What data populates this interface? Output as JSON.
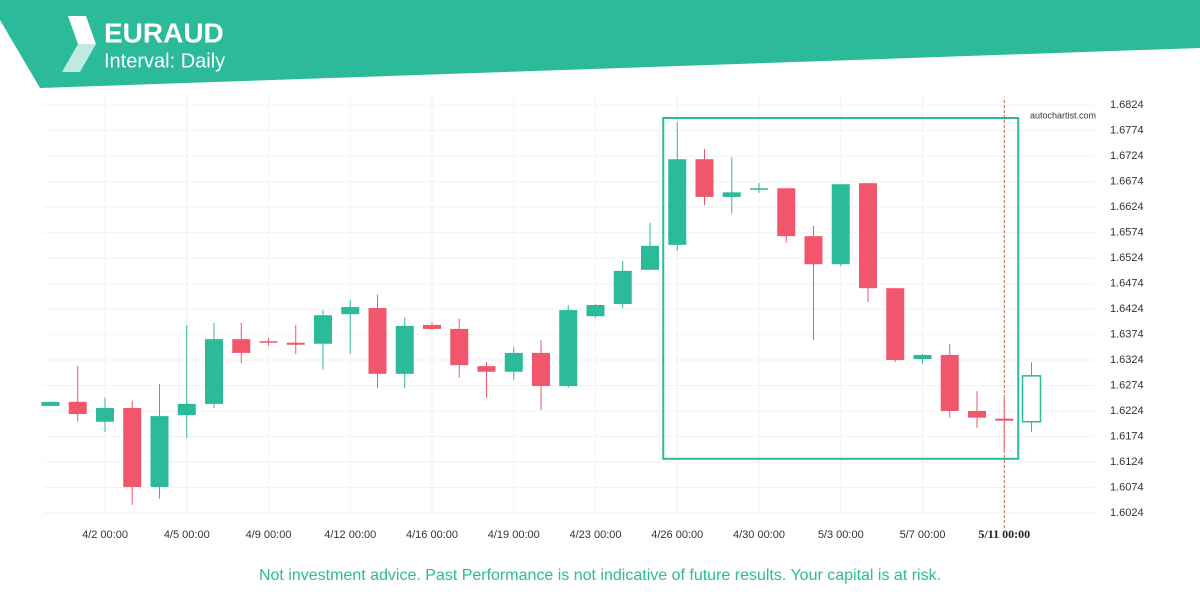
{
  "chart_data": {
    "type": "candlestick",
    "title": "EURAUD",
    "subtitle": "Interval: Daily",
    "source": "autochartist.com",
    "footer": "Not investment advice. Past Performance is not indicative of future results. Your capital is at risk.",
    "categories": [
      null,
      null,
      "4/2 00:00",
      null,
      null,
      "4/5 00:00",
      null,
      null,
      "4/9 00:00",
      null,
      null,
      "4/12 00:00",
      null,
      null,
      "4/16 00:00",
      null,
      null,
      "4/19 00:00",
      null,
      null,
      "4/23 00:00",
      null,
      null,
      "4/26 00:00",
      null,
      null,
      "4/30 00:00",
      null,
      null,
      "5/3 00:00",
      null,
      null,
      "5/7 00:00",
      null,
      null,
      "5/11 00:00",
      null
    ],
    "open": [
      1.6234,
      1.6242,
      1.6203,
      1.623,
      1.6075,
      1.6216,
      1.6238,
      1.6365,
      1.6361,
      1.6358,
      1.6356,
      1.6414,
      1.6426,
      1.6297,
      1.6393,
      1.6385,
      1.6312,
      1.6301,
      1.6338,
      1.6273,
      1.641,
      1.6434,
      1.6501,
      1.655,
      1.6718,
      1.6644,
      1.6659,
      1.6661,
      1.6567,
      1.6512,
      1.6671,
      1.6465,
      1.6326,
      1.6334,
      1.6224,
      1.6209,
      1.6203
    ],
    "high": [
      1.6242,
      1.6312,
      1.625,
      1.6244,
      1.6277,
      1.6393,
      1.6397,
      1.6397,
      1.6367,
      1.6393,
      1.6422,
      1.6442,
      1.6452,
      1.6407,
      1.6399,
      1.6405,
      1.632,
      1.635,
      1.6363,
      1.6432,
      1.6434,
      1.6518,
      1.6593,
      1.6791,
      1.6738,
      1.6722,
      1.6671,
      1.6661,
      1.6587,
      1.6669,
      1.6671,
      1.6465,
      1.6336,
      1.6356,
      1.6263,
      1.625,
      1.632
    ],
    "low": [
      1.6234,
      1.6203,
      1.6183,
      1.604,
      1.6052,
      1.6171,
      1.623,
      1.6318,
      1.6352,
      1.6336,
      1.6305,
      1.6336,
      1.6269,
      1.6269,
      1.6383,
      1.6289,
      1.625,
      1.6285,
      1.6226,
      1.6269,
      1.6407,
      1.6426,
      1.6501,
      1.6538,
      1.6628,
      1.6612,
      1.6652,
      1.6554,
      1.6363,
      1.6508,
      1.6438,
      1.632,
      1.6316,
      1.6211,
      1.6191,
      1.6144,
      1.6183
    ],
    "close": [
      1.6242,
      1.6218,
      1.623,
      1.6075,
      1.6214,
      1.6238,
      1.6365,
      1.6338,
      1.6358,
      1.6354,
      1.6412,
      1.6428,
      1.6297,
      1.6391,
      1.6385,
      1.6314,
      1.6301,
      1.6338,
      1.6273,
      1.6422,
      1.6432,
      1.6499,
      1.6548,
      1.6718,
      1.6644,
      1.6653,
      1.6661,
      1.6567,
      1.6512,
      1.6669,
      1.6465,
      1.6324,
      1.6334,
      1.6224,
      1.6211,
      1.6205,
      1.6293
    ],
    "up_color": "#2bba9a",
    "down_color": "#f2566c",
    "ylim": [
      1.602,
      1.6844
    ],
    "yticks": [
      1.6824,
      1.6774,
      1.6724,
      1.6674,
      1.6624,
      1.6574,
      1.6524,
      1.6474,
      1.6424,
      1.6374,
      1.6324,
      1.6274,
      1.6224,
      1.6174,
      1.6124,
      1.6074,
      1.6024
    ],
    "grid": true
  }
}
